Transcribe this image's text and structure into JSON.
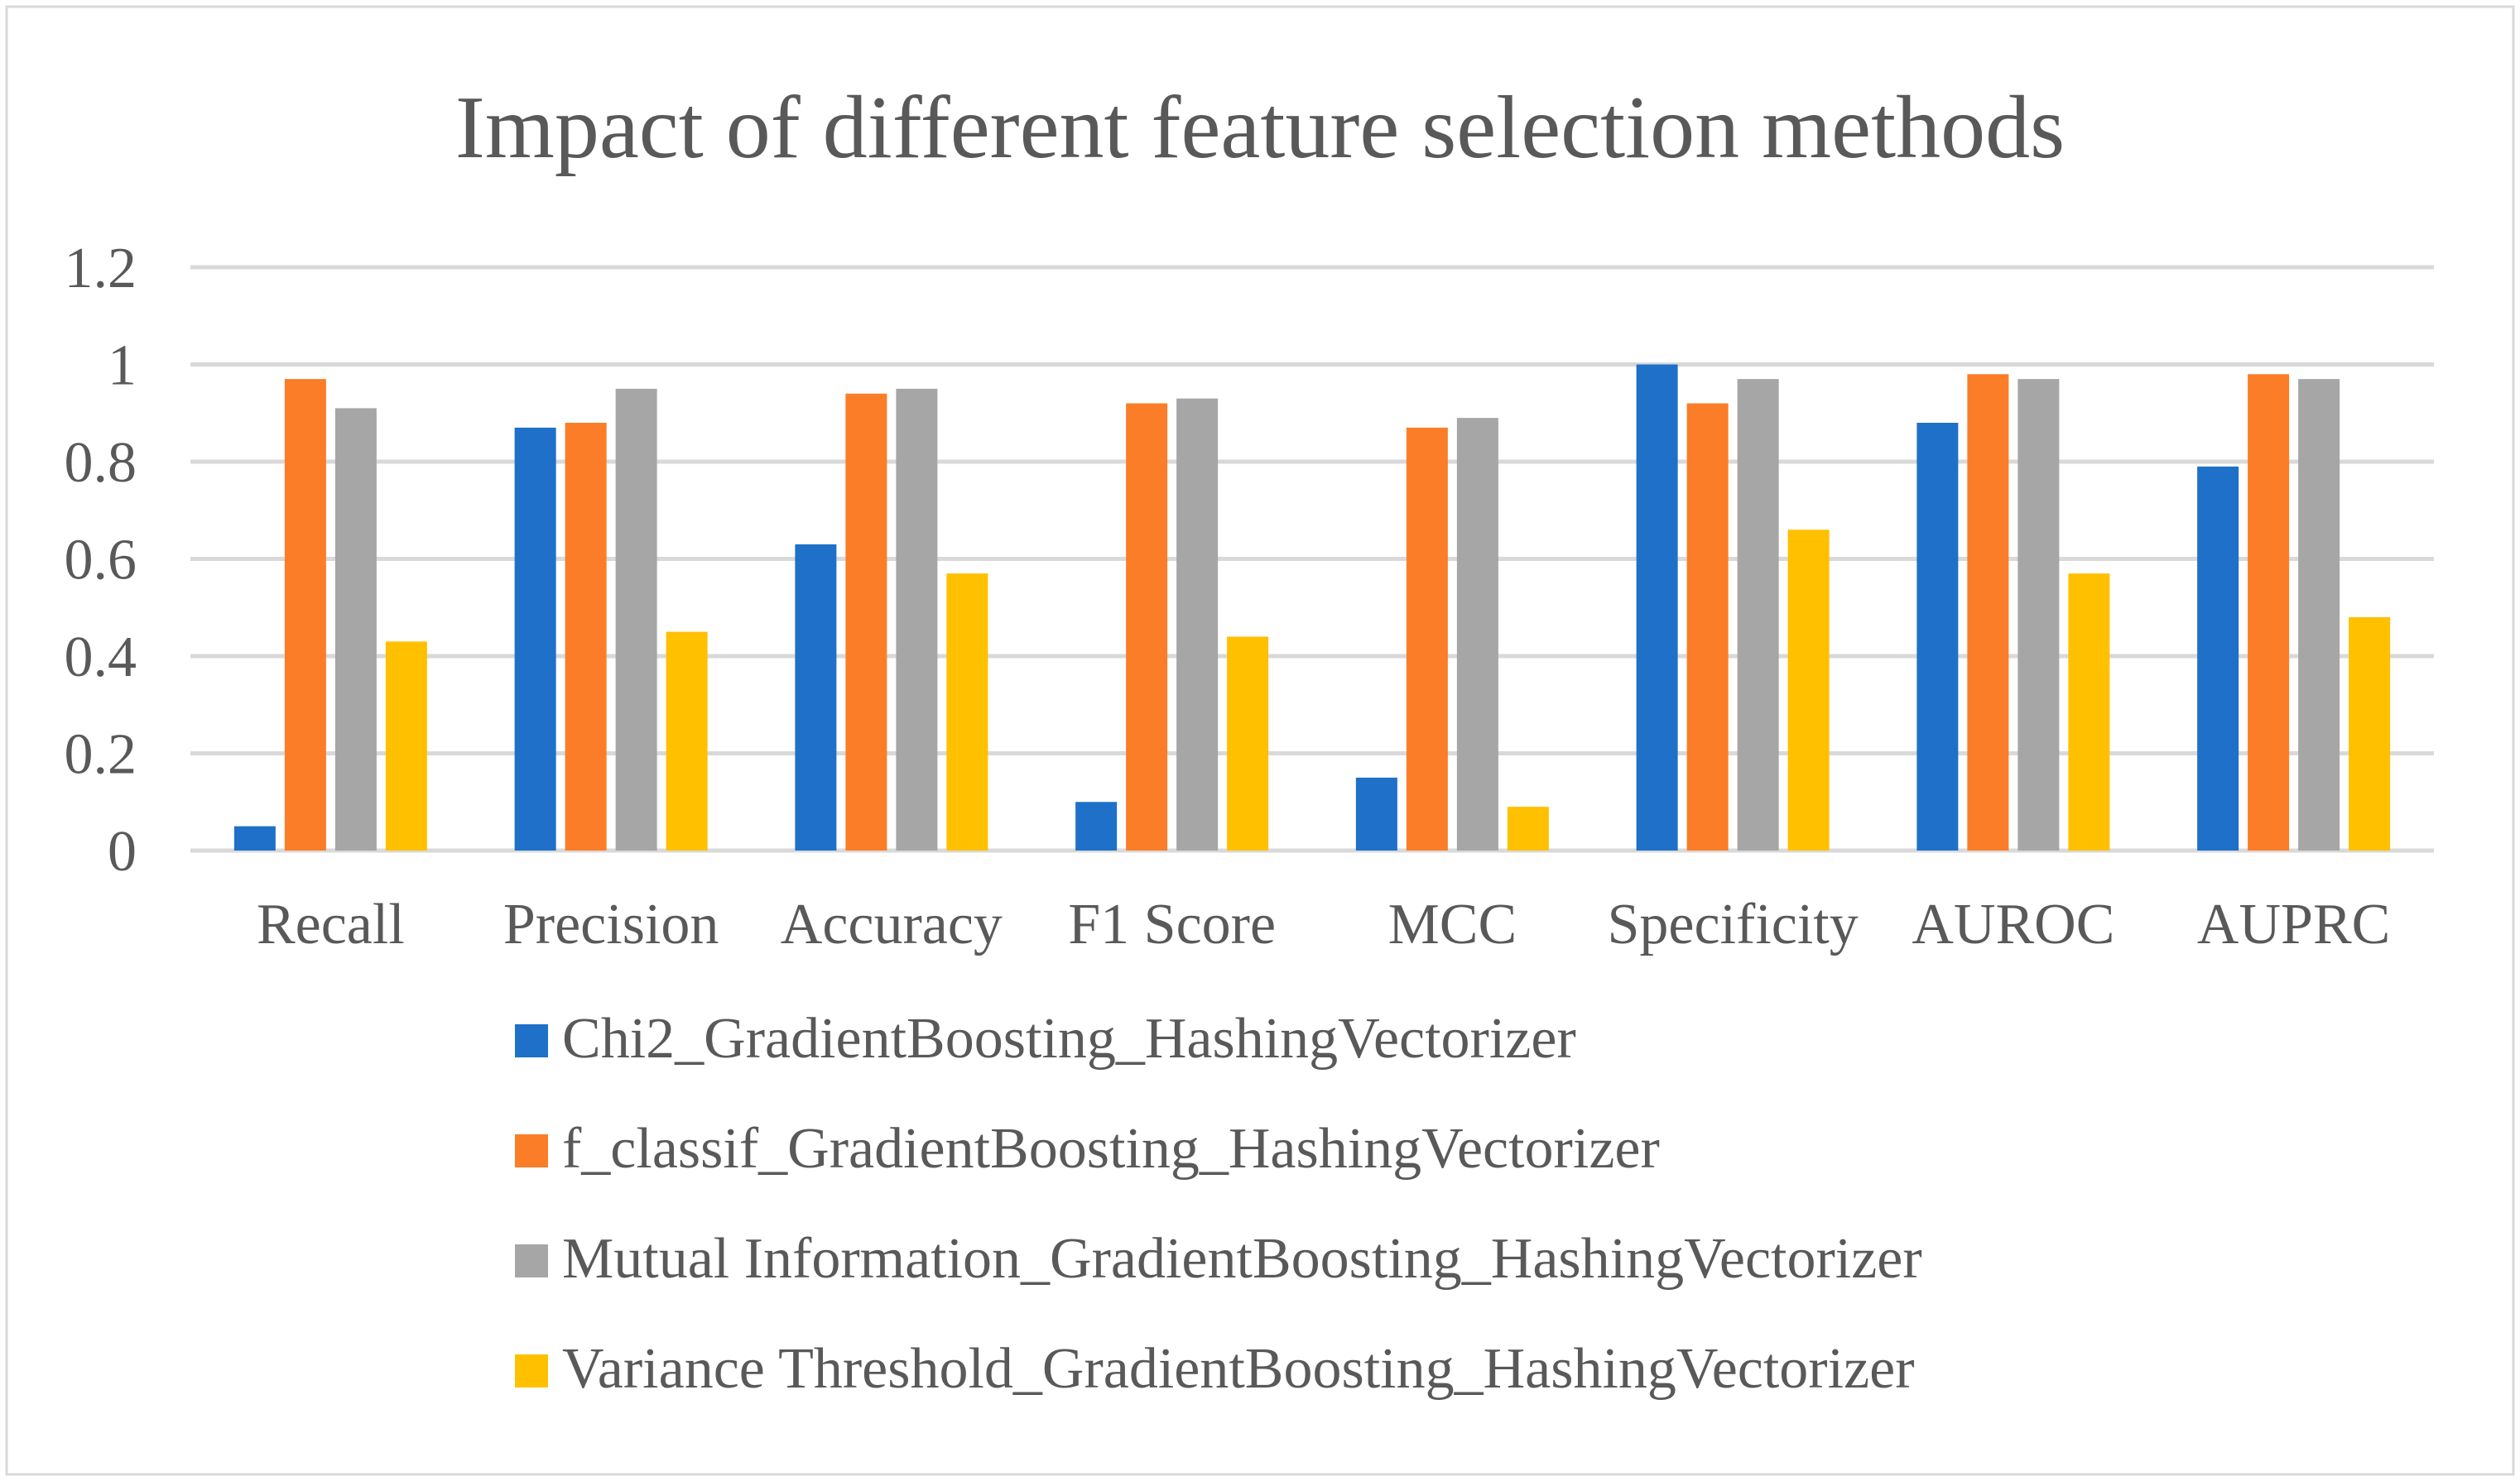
{
  "chart_data": {
    "type": "bar",
    "title": "Impact of different feature selection methods",
    "xlabel": "",
    "ylabel": "",
    "ylim": [
      0,
      1.2
    ],
    "yticks": [
      "0",
      "0.2",
      "0.4",
      "0.6",
      "0.8",
      "1",
      "1.2"
    ],
    "ytick_values": [
      0,
      0.2,
      0.4,
      0.6,
      0.8,
      1.0,
      1.2
    ],
    "grid": true,
    "legend_position": "bottom",
    "categories": [
      "Recall",
      "Precision",
      "Accuracy",
      "F1 Score",
      "MCC",
      "Specificity",
      "AUROC",
      "AUPRC"
    ],
    "series": [
      {
        "name": "Chi2_GradientBoosting_HashingVectorizer",
        "color": "#1f70c8",
        "values": [
          0.05,
          0.87,
          0.63,
          0.1,
          0.15,
          1.0,
          0.88,
          0.79
        ]
      },
      {
        "name": "f_classif_GradientBoosting_HashingVectorizer",
        "color": "#fb7d27",
        "values": [
          0.97,
          0.88,
          0.94,
          0.92,
          0.87,
          0.92,
          0.98,
          0.98
        ]
      },
      {
        "name": "Mutual Information_GradientBoosting_HashingVectorizer",
        "color": "#a6a6a6",
        "values": [
          0.91,
          0.95,
          0.95,
          0.93,
          0.89,
          0.97,
          0.97,
          0.97
        ]
      },
      {
        "name": "Variance Threshold_GradientBoosting_HashingVectorizer",
        "color": "#ffc000",
        "values": [
          0.43,
          0.45,
          0.57,
          0.44,
          0.09,
          0.66,
          0.57,
          0.48
        ]
      }
    ]
  }
}
